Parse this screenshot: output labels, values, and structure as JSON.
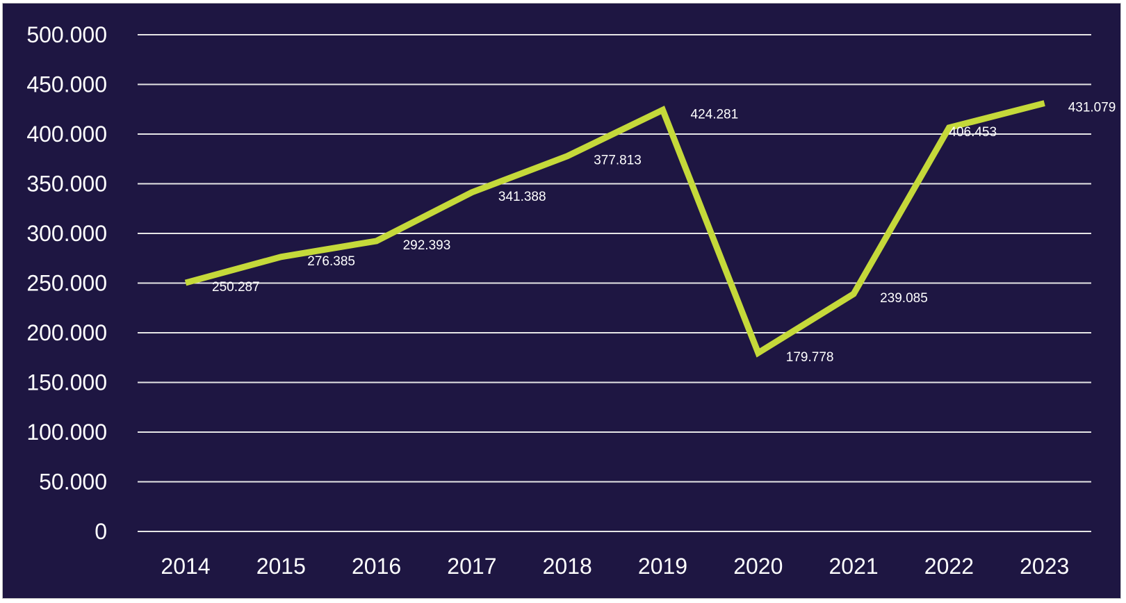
{
  "chart_data": {
    "type": "line",
    "title": "",
    "xlabel": "",
    "ylabel": "",
    "categories": [
      "2014",
      "2015",
      "2016",
      "2017",
      "2018",
      "2019",
      "2020",
      "2021",
      "2022",
      "2023"
    ],
    "series": [
      {
        "values": [
          250287,
          276385,
          292393,
          341388,
          377813,
          424281,
          179778,
          239085,
          406453,
          431079
        ],
        "data_labels": [
          "250.287",
          "276.385",
          "292.393",
          "341.388",
          "377.813",
          "424.281",
          "179.778",
          "239.085",
          "406.453",
          "431.079"
        ],
        "color": "#c5d93a"
      }
    ],
    "ylim": [
      0,
      500000
    ],
    "yticks": [
      0,
      50000,
      100000,
      150000,
      200000,
      250000,
      300000,
      350000,
      400000,
      450000,
      500000
    ],
    "ytick_labels": [
      "0",
      "50.000",
      "100.000",
      "150.000",
      "200.000",
      "250.000",
      "300.000",
      "350.000",
      "400.000",
      "450.000",
      "500.000"
    ],
    "grid": true,
    "legend": "none",
    "background_color": "#1e1642",
    "text_color": "#ffffff",
    "grid_color": "#e6e6e6"
  }
}
